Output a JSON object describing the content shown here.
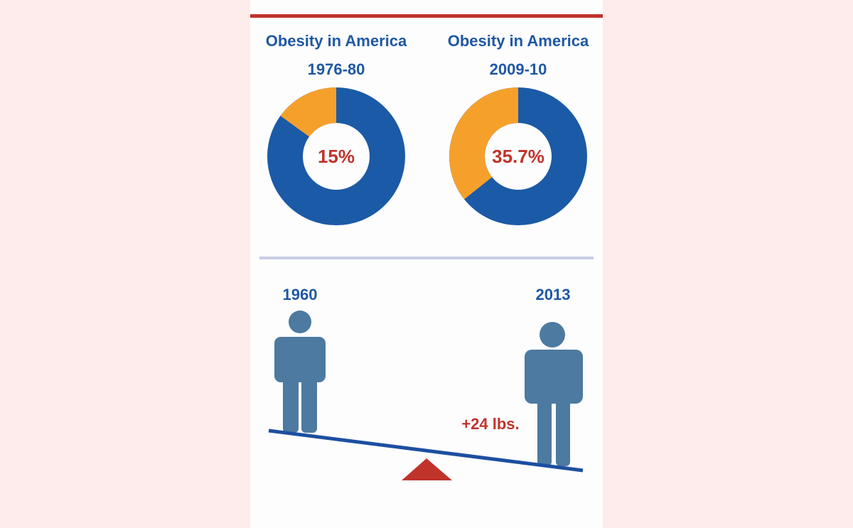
{
  "chart_data": [
    {
      "type": "donut",
      "title": "Obesity in America 1976-80",
      "values": [
        15
      ],
      "value_labels": [
        "15%"
      ],
      "color": "#f6a02c",
      "rest_color": "#1b5aa6"
    },
    {
      "type": "donut",
      "title": "Obesity in America 2009-10",
      "values": [
        35.7
      ],
      "value_labels": [
        "35.7%"
      ],
      "color": "#f6a02c",
      "rest_color": "#1b5aa6"
    }
  ],
  "seesaw": {
    "left_label": "1960",
    "right_label": "2013",
    "annotation": "+24 lbs."
  }
}
